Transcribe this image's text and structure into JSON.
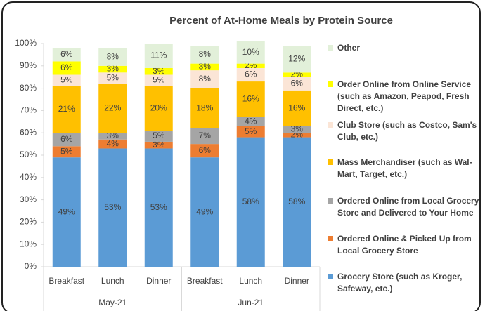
{
  "chart_data": {
    "type": "stacked-bar",
    "title": "Percent of At-Home Meals by Protein Source",
    "categories": [
      "Breakfast",
      "Lunch",
      "Dinner",
      "Breakfast",
      "Lunch",
      "Dinner"
    ],
    "x_groups": [
      "May-21",
      "Jun-21"
    ],
    "ylim": [
      0,
      100
    ],
    "yticks": [
      {
        "value": 0,
        "label": "0%"
      },
      {
        "value": 10,
        "label": "10%"
      },
      {
        "value": 20,
        "label": "20%"
      },
      {
        "value": 30,
        "label": "30%"
      },
      {
        "value": 40,
        "label": "40%"
      },
      {
        "value": 50,
        "label": "50%"
      },
      {
        "value": 60,
        "label": "60%"
      },
      {
        "value": 70,
        "label": "70%"
      },
      {
        "value": 80,
        "label": "80%"
      },
      {
        "value": 90,
        "label": "90%"
      },
      {
        "value": 100,
        "label": "100%"
      }
    ],
    "legend": "right",
    "series": [
      {
        "name": "Grocery Store (such as Kroger, Safeway, etc.)",
        "color": "#5b9bd5",
        "values": [
          49,
          53,
          53,
          49,
          58,
          58
        ],
        "value_labels": [
          "49%",
          "53%",
          "53%",
          "49%",
          "58%",
          "58%"
        ]
      },
      {
        "name": "Ordered Online & Picked Up from Local Grocery Store",
        "color": "#ed7d31",
        "values": [
          5,
          4,
          3,
          6,
          5,
          2
        ],
        "value_labels": [
          "5%",
          "4%",
          "3%",
          "6%",
          "5%",
          "2%"
        ]
      },
      {
        "name": "Ordered Online from Local Grocery Store and Delivered to Your Home",
        "color": "#a5a5a5",
        "values": [
          6,
          3,
          5,
          7,
          4,
          3
        ],
        "value_labels": [
          "6%",
          "3%",
          "5%",
          "7%",
          "4%",
          "3%"
        ]
      },
      {
        "name": "Mass Merchandiser (such as Wal-Mart, Target, etc.)",
        "color": "#ffc000",
        "values": [
          21,
          22,
          20,
          18,
          16,
          16
        ],
        "value_labels": [
          "21%",
          "22%",
          "20%",
          "18%",
          "16%",
          "16%"
        ]
      },
      {
        "name": "Club Store (such as Costco, Sam's Club, etc.)",
        "color": "#fbe5d6",
        "values": [
          5,
          5,
          5,
          8,
          6,
          6
        ],
        "value_labels": [
          "5%",
          "5%",
          "5%",
          "8%",
          "6%",
          "6%"
        ]
      },
      {
        "name": "Order Online from Online Service (such as Amazon, Peapod, Fresh Direct, etc.)",
        "color": "#ffff00",
        "values": [
          6,
          3,
          3,
          3,
          2,
          2
        ],
        "value_labels": [
          "6%",
          "3%",
          "3%",
          "3%",
          "2%",
          "2%"
        ]
      },
      {
        "name": "Other",
        "color": "#e2f0d9",
        "values": [
          6,
          8,
          11,
          8,
          10,
          12
        ],
        "value_labels": [
          "6%",
          "8%",
          "11%",
          "8%",
          "10%",
          "12%"
        ]
      }
    ]
  }
}
